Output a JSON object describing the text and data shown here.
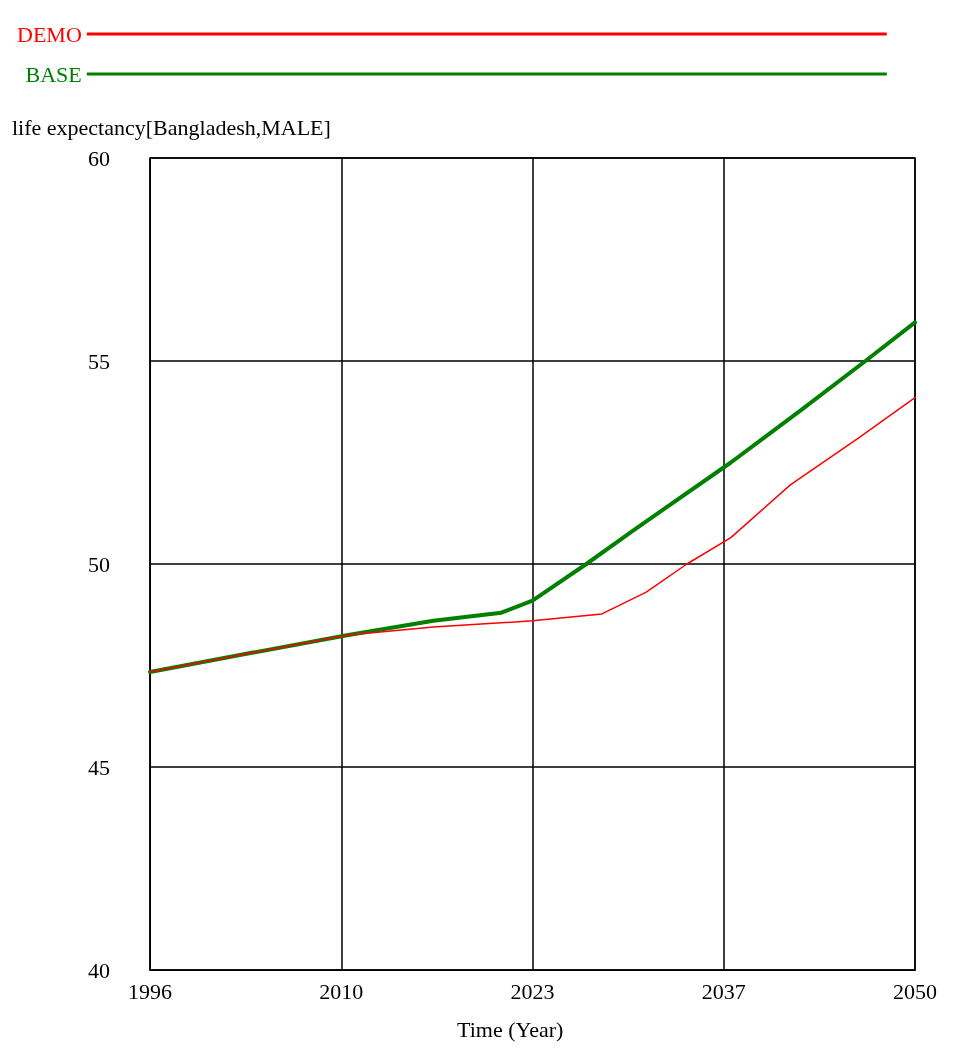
{
  "chart_data": {
    "type": "line",
    "ylabel": "life expectancy[Bangladesh,MALE]",
    "xlabel": "Time (Year)",
    "xlim": [
      1996,
      2050
    ],
    "xticks": [
      1996,
      {
        "value": 2009.5,
        "label": "2010"
      },
      2023,
      {
        "value": 2036.5,
        "label": "2037"
      },
      2050
    ],
    "ylim": [
      40,
      60
    ],
    "yticks": [
      40,
      45,
      50,
      55,
      60
    ],
    "grid": true,
    "legend": "top left",
    "marker": "none",
    "line_style": "solid",
    "series": [
      {
        "name": "DEMO",
        "color": "#ff0000",
        "x": [
          1996,
          2003,
          2010,
          2016,
          2020.8,
          2023,
          2027.9,
          2031,
          2033.9,
          2037,
          2041.2,
          2046,
          2050
        ],
        "values": [
          47.34,
          47.8,
          48.25,
          48.45,
          48.55,
          48.6,
          48.77,
          49.3,
          50.0,
          50.65,
          51.95,
          53.1,
          54.1
        ]
      },
      {
        "name": "BASE",
        "color": "#008000",
        "x": [
          1996,
          2003,
          2010,
          2016,
          2020.8,
          2023,
          2026.8,
          2030,
          2037,
          2042,
          2046.5,
          2050
        ],
        "values": [
          47.34,
          47.8,
          48.25,
          48.6,
          48.8,
          49.1,
          50.0,
          50.8,
          52.5,
          53.8,
          55.0,
          55.95
        ]
      }
    ]
  }
}
